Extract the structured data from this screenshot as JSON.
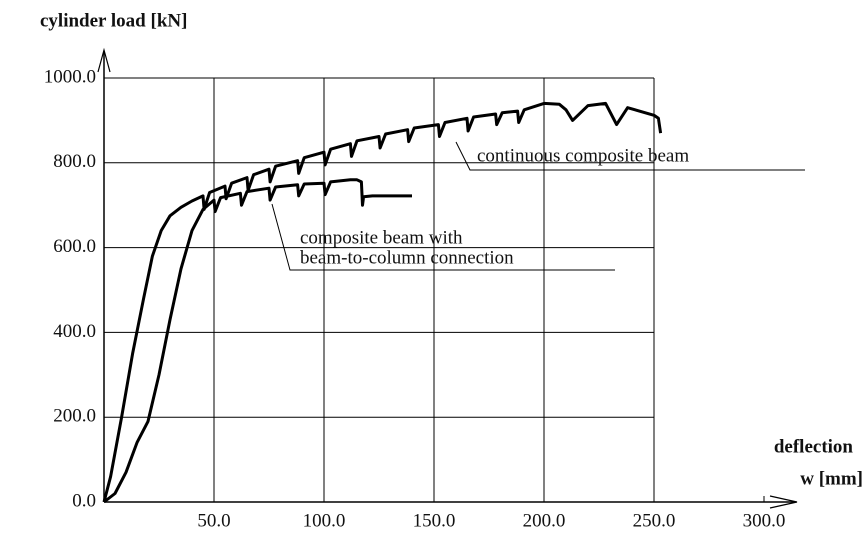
{
  "chart_data": {
    "type": "line",
    "ylabel": "cylinder load [kN]",
    "xlabel": [
      "deflection",
      "w [mm]"
    ],
    "xlim": [
      0,
      300
    ],
    "ylim": [
      0,
      1000
    ],
    "xticks": [
      {
        "value": 50,
        "label": "50.0"
      },
      {
        "value": 100,
        "label": "100.0"
      },
      {
        "value": 150,
        "label": "150.0"
      },
      {
        "value": 200,
        "label": "200.0"
      },
      {
        "value": 250,
        "label": "250.0"
      },
      {
        "value": 300,
        "label": "300.0"
      }
    ],
    "yticks": [
      {
        "value": 0,
        "label": "0.0"
      },
      {
        "value": 200,
        "label": "200.0"
      },
      {
        "value": 400,
        "label": "400.0"
      },
      {
        "value": 600,
        "label": "600.0"
      },
      {
        "value": 800,
        "label": "800.0"
      },
      {
        "value": 1000,
        "label": "1000.0"
      }
    ],
    "grid": true,
    "series": [
      {
        "name": [
          "continuous composite beam"
        ],
        "color": "#000000",
        "x": [
          0,
          3,
          8,
          13,
          18,
          22,
          26,
          30,
          35,
          40,
          45,
          45.5,
          48,
          55,
          55.5,
          58,
          65,
          65.5,
          68,
          75,
          75.5,
          78,
          88,
          88.5,
          91,
          100,
          100.5,
          103,
          112,
          112.5,
          115,
          125,
          125.5,
          128,
          138,
          138.5,
          141,
          152,
          152.5,
          155,
          165,
          165.5,
          168,
          178,
          178.5,
          181,
          188,
          188.5,
          191,
          200,
          207,
          210,
          213,
          220,
          228,
          233,
          238,
          250,
          252,
          253
        ],
        "values": [
          0,
          60,
          200,
          350,
          480,
          580,
          640,
          675,
          695,
          710,
          722,
          690,
          730,
          745,
          715,
          752,
          765,
          735,
          772,
          785,
          755,
          792,
          805,
          775,
          812,
          825,
          795,
          832,
          845,
          815,
          852,
          862,
          835,
          868,
          878,
          850,
          882,
          890,
          862,
          895,
          905,
          875,
          908,
          915,
          890,
          918,
          922,
          895,
          925,
          940,
          938,
          925,
          900,
          935,
          940,
          890,
          930,
          912,
          905,
          870
        ]
      },
      {
        "name": [
          "composite beam with",
          "beam-to-column connection"
        ],
        "color": "#000000",
        "x": [
          0,
          5,
          10,
          15,
          20,
          25,
          30,
          35,
          40,
          45,
          50,
          50.5,
          53,
          62,
          62.5,
          65,
          75,
          75.5,
          78,
          88,
          88.5,
          91,
          100,
          100.5,
          103,
          112,
          115,
          117,
          117.5,
          118,
          122,
          130,
          140
        ],
        "values": [
          0,
          20,
          70,
          140,
          190,
          300,
          430,
          550,
          640,
          690,
          712,
          685,
          718,
          728,
          700,
          732,
          740,
          712,
          743,
          748,
          722,
          750,
          752,
          725,
          755,
          760,
          760,
          755,
          700,
          720,
          722,
          722,
          722
        ]
      }
    ]
  }
}
